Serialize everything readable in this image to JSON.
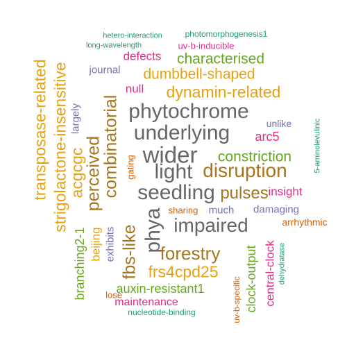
{
  "colors": {
    "orange": "#E6A110",
    "green": "#66A61E",
    "pink": "#E7298A",
    "purple": "#7570B3",
    "brown": "#A6761D",
    "teal": "#1B9E77",
    "rust": "#D95F02",
    "gray": "#666666"
  },
  "words": [
    {
      "text": "phytochrome",
      "color": "gray",
      "name": "phytochrome"
    },
    {
      "text": "underlying",
      "color": "gray",
      "name": "underlying"
    },
    {
      "text": "wider",
      "color": "gray",
      "name": "wider"
    },
    {
      "text": "light",
      "color": "gray",
      "name": "light"
    },
    {
      "text": "seedling",
      "color": "gray",
      "name": "seedling"
    },
    {
      "text": "impaired",
      "color": "gray",
      "name": "impaired"
    },
    {
      "text": "phya",
      "color": "gray",
      "name": "phya"
    },
    {
      "text": "disruption",
      "color": "brown",
      "name": "disruption"
    },
    {
      "text": "pulses",
      "color": "brown",
      "name": "pulses"
    },
    {
      "text": "forestry",
      "color": "brown",
      "name": "forestry"
    },
    {
      "text": "combinatorial",
      "color": "brown",
      "name": "combinatorial"
    },
    {
      "text": "perceived",
      "color": "brown",
      "name": "perceived"
    },
    {
      "text": "fbs-like",
      "color": "brown",
      "name": "fbs-like"
    },
    {
      "text": "frs4cpd25",
      "color": "orange",
      "name": "frs4cpd25"
    },
    {
      "text": "dynamin-related",
      "color": "orange",
      "name": "dynamin-related"
    },
    {
      "text": "dumbbell-shaped",
      "color": "orange",
      "name": "dumbbell-shaped"
    },
    {
      "text": "transposase-related",
      "color": "orange",
      "name": "transposase-related"
    },
    {
      "text": "strigolactone-insensitive",
      "color": "orange",
      "name": "strigolactone-insensitive"
    },
    {
      "text": "acgcgc",
      "color": "orange",
      "name": "acgcgc"
    },
    {
      "text": "beijing",
      "color": "orange",
      "name": "beijing"
    },
    {
      "text": "characterised",
      "color": "green",
      "name": "characterised"
    },
    {
      "text": "constriction",
      "color": "green",
      "name": "constriction"
    },
    {
      "text": "auxin-resistant1",
      "color": "green",
      "name": "auxin-resistant1"
    },
    {
      "text": "branching2-1",
      "color": "green",
      "name": "branching2-1"
    },
    {
      "text": "clock-output",
      "color": "green",
      "name": "clock-output"
    },
    {
      "text": "defects",
      "color": "pink",
      "name": "defects"
    },
    {
      "text": "null",
      "color": "pink",
      "name": "null"
    },
    {
      "text": "arc5",
      "color": "pink",
      "name": "arc5"
    },
    {
      "text": "insight",
      "color": "pink",
      "name": "insight"
    },
    {
      "text": "central-clock",
      "color": "pink",
      "name": "central-clock"
    },
    {
      "text": "maintenance",
      "color": "pink",
      "name": "maintenance"
    },
    {
      "text": "uv-b-inducible",
      "color": "pink",
      "name": "uv-b-inducible"
    },
    {
      "text": "journal",
      "color": "purple",
      "name": "journal"
    },
    {
      "text": "largely",
      "color": "purple",
      "name": "largely"
    },
    {
      "text": "unlike",
      "color": "purple",
      "name": "unlike"
    },
    {
      "text": "much",
      "color": "purple",
      "name": "much"
    },
    {
      "text": "damaging",
      "color": "purple",
      "name": "damaging"
    },
    {
      "text": "exhibits",
      "color": "purple",
      "name": "exhibits"
    },
    {
      "text": "gating",
      "color": "rust",
      "name": "gating"
    },
    {
      "text": "sharing",
      "color": "rust",
      "name": "sharing"
    },
    {
      "text": "arrhythmic",
      "color": "rust",
      "name": "arrhythmic"
    },
    {
      "text": "lose",
      "color": "rust",
      "name": "lose"
    },
    {
      "text": "uv-b-specific",
      "color": "rust",
      "name": "uv-b-specific"
    },
    {
      "text": "hetero-interaction",
      "color": "teal",
      "name": "hetero-interaction"
    },
    {
      "text": "photomorphogenesis1",
      "color": "teal",
      "name": "photomorphogenesis1"
    },
    {
      "text": "long-wavelength",
      "color": "teal",
      "name": "long-wavelength"
    },
    {
      "text": "5-aminolevulinic",
      "color": "teal",
      "name": "5-aminolevulinic"
    },
    {
      "text": "dehydratase",
      "color": "teal",
      "name": "dehydratase"
    },
    {
      "text": "nucleotide-binding",
      "color": "teal",
      "name": "nucleotide-binding"
    }
  ]
}
